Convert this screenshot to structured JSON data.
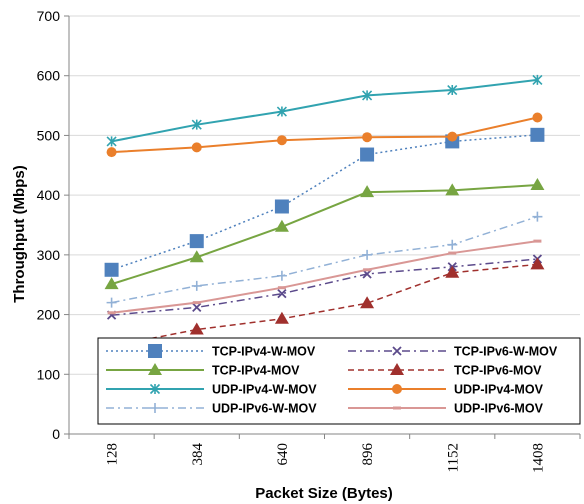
{
  "chart_data": {
    "type": "line",
    "title": "",
    "xlabel": "Packet Size (Bytes)",
    "ylabel": "Throughput (Mbps)",
    "categories": [
      "128",
      "384",
      "640",
      "896",
      "1152",
      "1408"
    ],
    "ylim": [
      0,
      700
    ],
    "yticks": [
      0,
      100,
      200,
      300,
      400,
      500,
      600,
      700
    ],
    "grid": true,
    "legend_position": "bottom",
    "series": [
      {
        "name": "TCP-IPv4-W-MOV",
        "values": [
          275,
          323,
          381,
          468,
          490,
          501
        ],
        "color": "#4f81bd",
        "dash": "dot",
        "marker": "square",
        "width": 1.5
      },
      {
        "name": "TCP-IPv6-W-MOV",
        "values": [
          199,
          212,
          235,
          268,
          280,
          293
        ],
        "color": "#5b4a8b",
        "dash": "dashdot",
        "marker": "x",
        "width": 1.5
      },
      {
        "name": "TCP-IPv4-MOV",
        "values": [
          251,
          296,
          347,
          405,
          408,
          417
        ],
        "color": "#77a542",
        "dash": "solid",
        "marker": "triangle",
        "width": 2
      },
      {
        "name": "TCP-IPv6-MOV",
        "values": [
          147,
          175,
          193,
          219,
          270,
          284
        ],
        "color": "#a0302d",
        "dash": "dash",
        "marker": "triangle",
        "width": 1.5
      },
      {
        "name": "UDP-IPv4-W-MOV",
        "values": [
          490,
          518,
          540,
          567,
          576,
          593
        ],
        "color": "#31a3b0",
        "dash": "solid",
        "marker": "star",
        "width": 2
      },
      {
        "name": "UDP-IPv4-MOV",
        "values": [
          472,
          480,
          492,
          497,
          498,
          530
        ],
        "color": "#ea7f2b",
        "dash": "solid",
        "marker": "circle",
        "width": 2
      },
      {
        "name": "UDP-IPv6-W-MOV",
        "values": [
          220,
          248,
          265,
          300,
          317,
          364
        ],
        "color": "#92b1d6",
        "dash": "dashdot",
        "marker": "plus",
        "width": 1.5
      },
      {
        "name": "UDP-IPv6-MOV",
        "values": [
          203,
          220,
          245,
          275,
          303,
          323
        ],
        "color": "#d99795",
        "dash": "solid",
        "marker": "dash",
        "width": 2
      }
    ]
  }
}
